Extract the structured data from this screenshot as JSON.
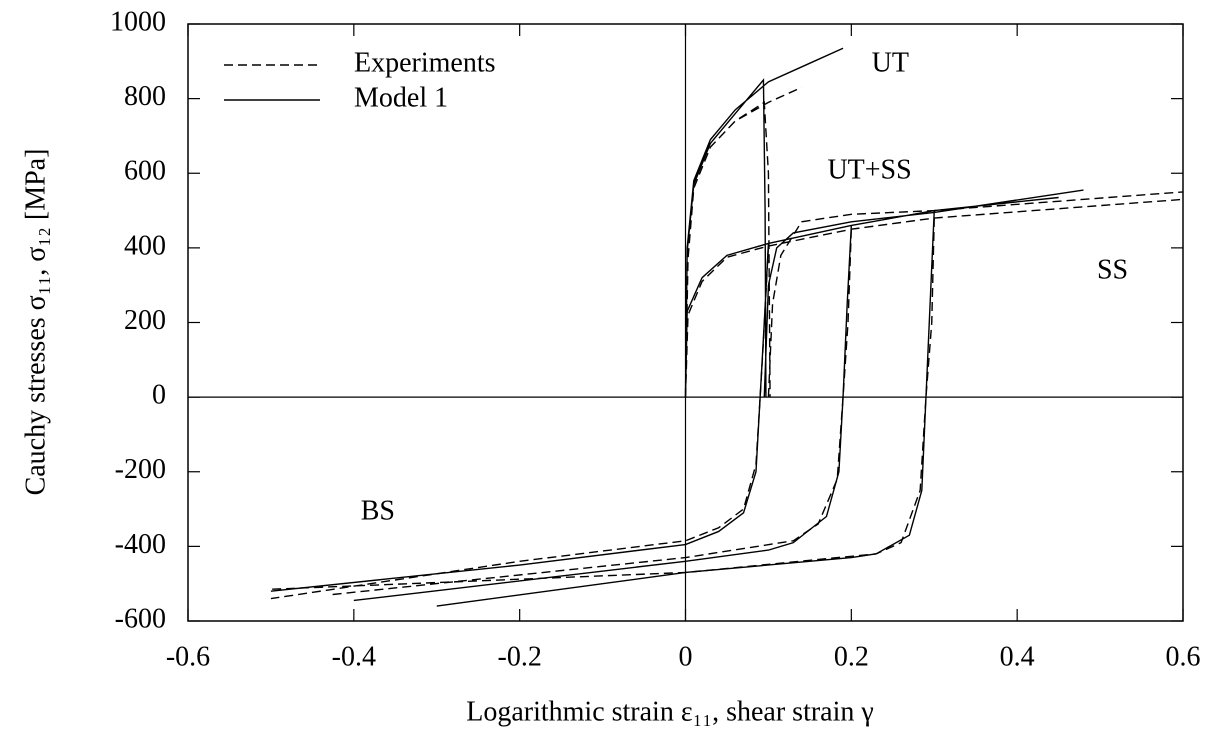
{
  "chart_data": {
    "type": "line",
    "xlabel": "Logarithmic strain ε₁₁, shear strain γ",
    "ylabel": "Cauchy stresses σ₁₁, σ₁₂ [MPa]",
    "xlim": [
      -0.6,
      0.6
    ],
    "ylim": [
      -600,
      1000
    ],
    "xticks": [
      -0.6,
      -0.4,
      -0.2,
      0,
      0.2,
      0.4,
      0.6
    ],
    "yticks": [
      -600,
      -400,
      -200,
      0,
      200,
      400,
      600,
      800,
      1000
    ],
    "legend": "upper left",
    "annotations": [
      {
        "text": "UT",
        "x": 0.247,
        "y": 890
      },
      {
        "text": "UT+SS",
        "x": 0.222,
        "y": 603
      },
      {
        "text": "SS",
        "x": 0.515,
        "y": 335
      },
      {
        "text": "BS",
        "x": -0.371,
        "y": -311
      }
    ],
    "series": [
      {
        "name": "Experiments",
        "color": "#000000",
        "line_style": "dashed",
        "x": [
          0,
          0.002,
          0.01,
          0.03,
          0.06,
          0.1,
          0.14,
          null,
          0,
          0.003,
          0.01,
          0.03,
          0.06,
          0.095,
          0.1,
          0.102,
          null,
          0.1,
          0.105,
          0.115,
          0.14,
          0.2,
          0.3,
          0.6,
          null,
          0,
          0.003,
          0.02,
          0.05,
          0.1,
          0.2,
          0.3,
          0.6,
          null,
          0.1,
          0.094,
          0.09,
          0.085,
          0.07,
          0.04,
          0,
          -0.2,
          -0.5,
          null,
          0.2,
          0.196,
          0.19,
          0.183,
          0.16,
          0.13,
          0,
          -0.43,
          null,
          0.3,
          0.297,
          0.29,
          0.283,
          0.26,
          0.23,
          0,
          -0.5
        ],
        "values": [
          0,
          380,
          560,
          670,
          740,
          790,
          830,
          null,
          0,
          370,
          560,
          670,
          740,
          790,
          600,
          0,
          null,
          0,
          250,
          380,
          470,
          490,
          500,
          550,
          null,
          0,
          220,
          310,
          375,
          405,
          450,
          480,
          530,
          null,
          405,
          150,
          0,
          -180,
          -300,
          -350,
          -385,
          -440,
          -540,
          null,
          450,
          200,
          0,
          -220,
          -340,
          -385,
          -430,
          -530,
          null,
          480,
          200,
          0,
          -250,
          -390,
          -420,
          -470,
          -515
        ]
      },
      {
        "name": "Model 1",
        "color": "#000000",
        "line_style": "solid",
        "x": [
          0,
          0.002,
          0.01,
          0.03,
          0.06,
          0.1,
          0.15,
          0.19,
          null,
          0,
          0.002,
          0.01,
          0.03,
          0.06,
          0.094,
          0.096,
          0.097,
          null,
          0.095,
          0.1,
          0.11,
          0.13,
          0.2,
          0.3,
          0.48,
          null,
          0,
          0.002,
          0.02,
          0.05,
          0.1,
          0.2,
          0.3,
          0.45,
          null,
          0.1,
          0.095,
          0.09,
          0.085,
          0.07,
          0.04,
          0,
          -0.2,
          -0.5,
          null,
          0.2,
          0.195,
          0.19,
          0.185,
          0.17,
          0.13,
          0.1,
          0,
          -0.4,
          null,
          0.3,
          0.295,
          0.29,
          0.285,
          0.27,
          0.23,
          0.2,
          0,
          -0.3
        ],
        "values": [
          0,
          400,
          580,
          690,
          770,
          845,
          895,
          935,
          null,
          0,
          390,
          570,
          680,
          760,
          850,
          500,
          0,
          null,
          0,
          300,
          400,
          440,
          470,
          495,
          555,
          null,
          0,
          230,
          320,
          380,
          412,
          460,
          500,
          535,
          null,
          412,
          200,
          0,
          -200,
          -310,
          -360,
          -395,
          -450,
          -520,
          null,
          460,
          250,
          0,
          -200,
          -320,
          -390,
          -410,
          -440,
          -545,
          null,
          500,
          250,
          0,
          -250,
          -370,
          -420,
          -430,
          -470,
          -560
        ]
      }
    ]
  }
}
